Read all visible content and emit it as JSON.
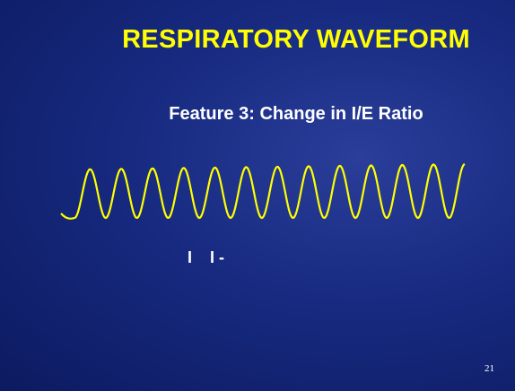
{
  "slide": {
    "title": "RESPIRATORY WAVEFORM",
    "subtitle": "Feature 3: Change in I/E Ratio",
    "labels": [
      "I",
      "I -"
    ],
    "page_number": "21"
  }
}
